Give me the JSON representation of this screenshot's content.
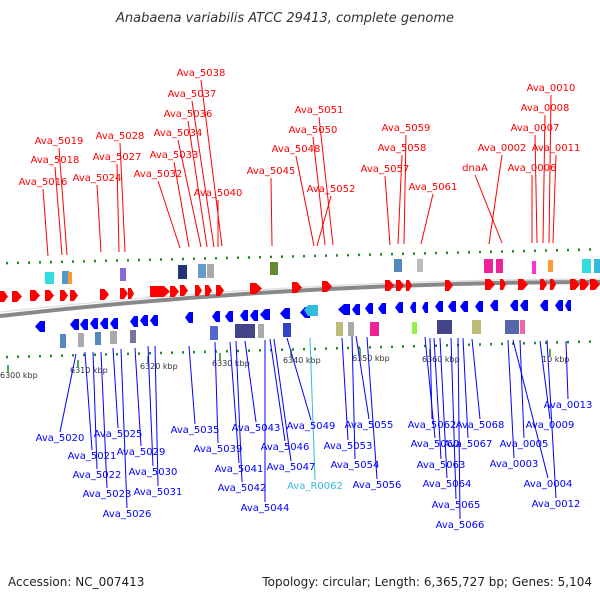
{
  "title": "Anabaena variabilis ATCC 29413, complete genome",
  "footer": {
    "accession": "Accession: NC_007413",
    "summary": "Topology: circular; Length: 6,365,727 bp; Genes: 5,104"
  },
  "colors": {
    "forward": "#ff0000",
    "reverse": "#0000ff",
    "rna": "#33bbdd",
    "tick": "#228822",
    "backbone": "#888888"
  },
  "ticks": [
    "6300 kbp",
    "6310 kbp",
    "6320 kbp",
    "6330 kbp",
    "6340 kbp",
    "6350 kbp",
    "6360 kbp",
    "10 kbp"
  ],
  "top_labels": [
    "Ava_5038",
    "Ava_5037",
    "Ava_5036",
    "Ava_5034",
    "Ava_5033",
    "Ava_5032",
    "Ava_5040",
    "Ava_5019",
    "Ava_5018",
    "Ava_5016",
    "Ava_5028",
    "Ava_5027",
    "Ava_5024",
    "Ava_5051",
    "Ava_5050",
    "Ava_5048",
    "Ava_5045",
    "Ava_5052",
    "Ava_5059",
    "Ava_5058",
    "Ava_5057",
    "Ava_5061",
    "Ava_0010",
    "Ava_0008",
    "Ava_0007",
    "Ava_0002",
    "Ava_0011",
    "dnaA",
    "Ava_0006"
  ],
  "bottom_labels": [
    "Ava_5020",
    "Ava_5021",
    "Ava_5022",
    "Ava_5023",
    "Ava_5025",
    "Ava_5026",
    "Ava_5029",
    "Ava_5030",
    "Ava_5031",
    "Ava_5035",
    "Ava_5039",
    "Ava_5041",
    "Ava_5042",
    "Ava_5043",
    "Ava_5044",
    "Ava_5046",
    "Ava_5047",
    "Ava_5049",
    "Ava_R0062",
    "Ava_5053",
    "Ava_5054",
    "Ava_5055",
    "Ava_5056",
    "Ava_5060",
    "Ava_5062",
    "Ava_5063",
    "Ava_5064",
    "Ava_5065",
    "Ava_5066",
    "Ava_5067",
    "Ava_5068",
    "Ava_0003",
    "Ava_0004",
    "Ava_0005",
    "Ava_0009",
    "Ava_0012",
    "Ava_0013"
  ]
}
